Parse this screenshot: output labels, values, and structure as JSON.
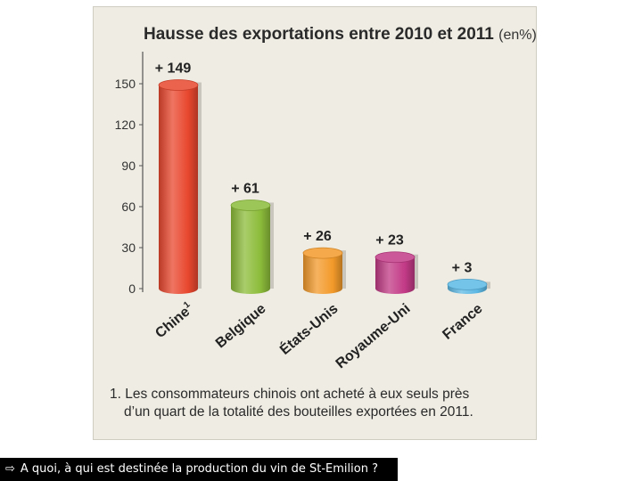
{
  "chart_data": {
    "type": "bar",
    "title": "Hausse des exportations entre 2010 et 2011",
    "unit": "(en%)",
    "categories": [
      "Chine",
      "Belgique",
      "États-Unis",
      "Royaume-Uni",
      "France"
    ],
    "footnote_marker": "1",
    "values": [
      149,
      61,
      26,
      23,
      3
    ],
    "value_labels": [
      "+ 149",
      "+ 61",
      "+ 26",
      "+ 23",
      "+ 3"
    ],
    "colors": [
      "#e8472e",
      "#8cbc3a",
      "#f39a2a",
      "#c23a86",
      "#5cb8e4"
    ],
    "yticks": [
      "150",
      "120",
      "90",
      "60",
      "30",
      "0"
    ],
    "ytick_values": [
      150,
      120,
      90,
      60,
      30,
      0
    ],
    "ylim": [
      0,
      150
    ],
    "xlabel": "",
    "ylabel": ""
  },
  "footnote": {
    "line1": "1. Les consommateurs chinois ont acheté à eux seuls près",
    "line2": "d’un quart de la totalité des bouteilles exportées en 2011."
  },
  "caption": {
    "arrow": "⇨",
    "text": "A quoi, à qui est destinée la production du vin de St-Emilion ?"
  }
}
